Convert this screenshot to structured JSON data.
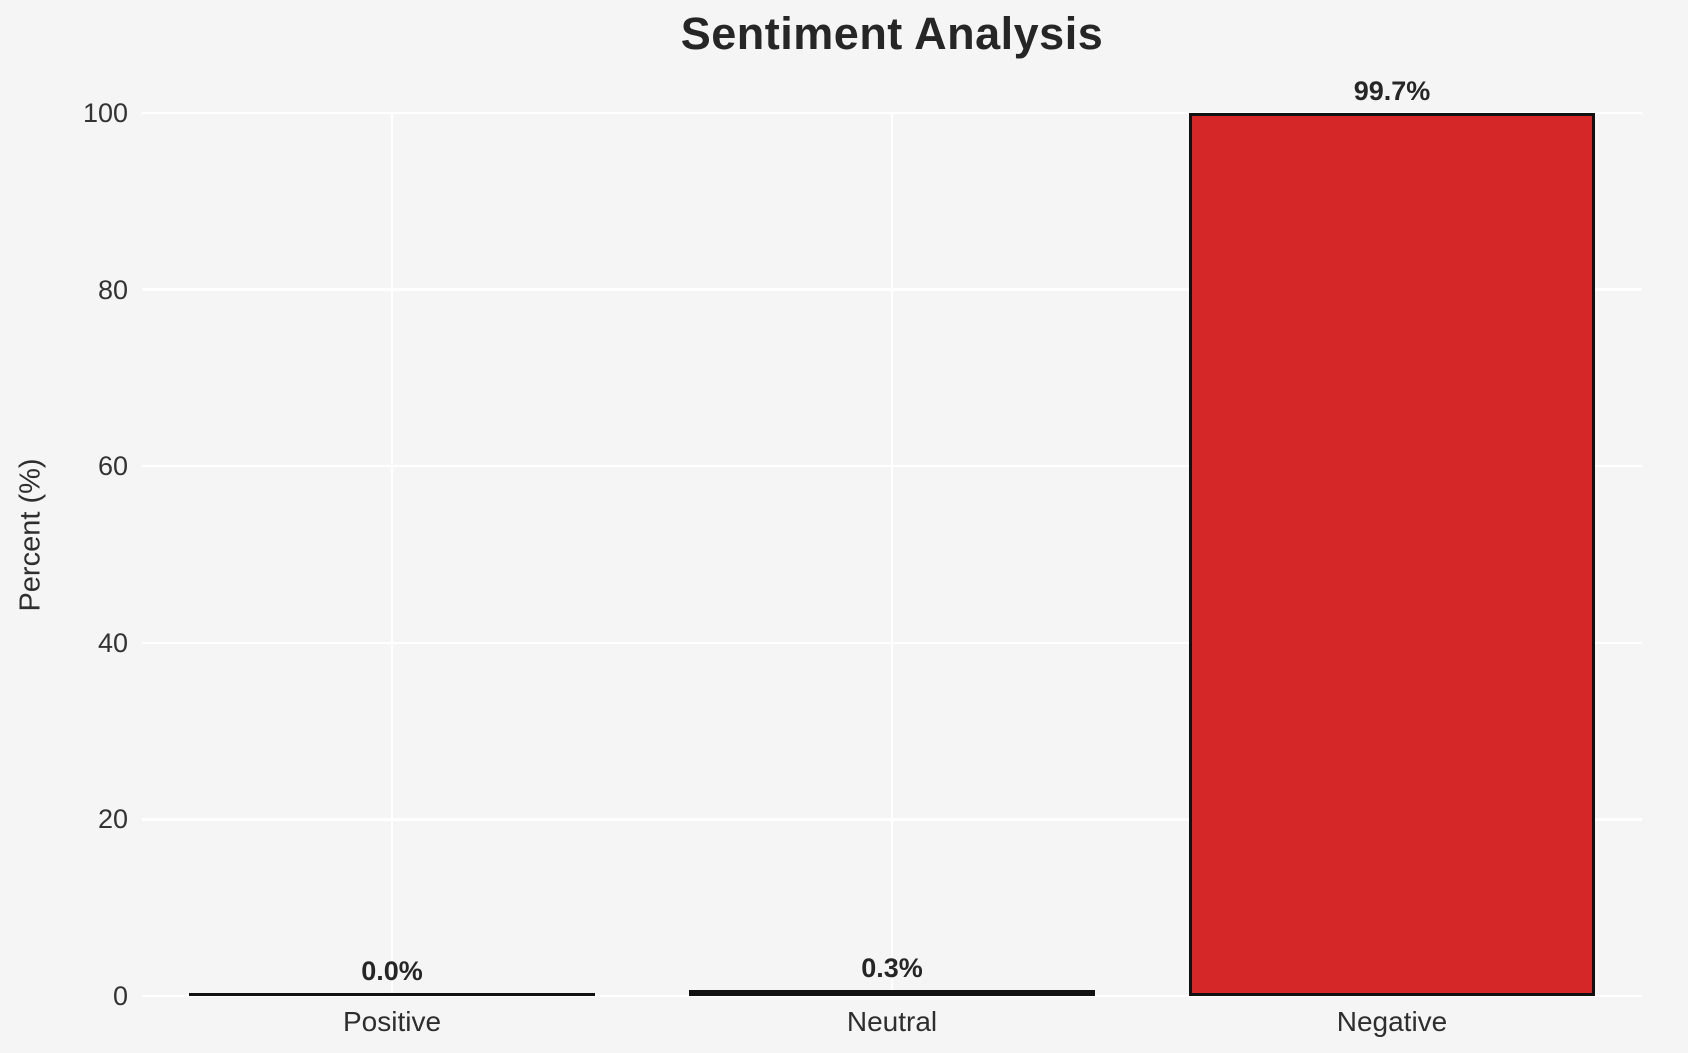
{
  "chart_data": {
    "type": "bar",
    "title": "Sentiment Analysis",
    "ylabel": "Percent (%)",
    "xlabel": "",
    "categories": [
      "Positive",
      "Neutral",
      "Negative"
    ],
    "values": [
      0.0,
      0.3,
      99.7
    ],
    "value_labels": [
      "0.0%",
      "0.3%",
      "99.7%"
    ],
    "ylim": [
      0,
      100
    ],
    "yticks": [
      0,
      20,
      40,
      60,
      80,
      100
    ],
    "grid": true,
    "legend_position": "none",
    "colors": {
      "background": "#f5f5f6",
      "gridline": "#ffffff",
      "bar_fills": [
        "#111111",
        "#111111",
        "#d62728"
      ],
      "bar_edge": "#111111",
      "title_text": "#262626",
      "tick_text": "#333333"
    }
  }
}
